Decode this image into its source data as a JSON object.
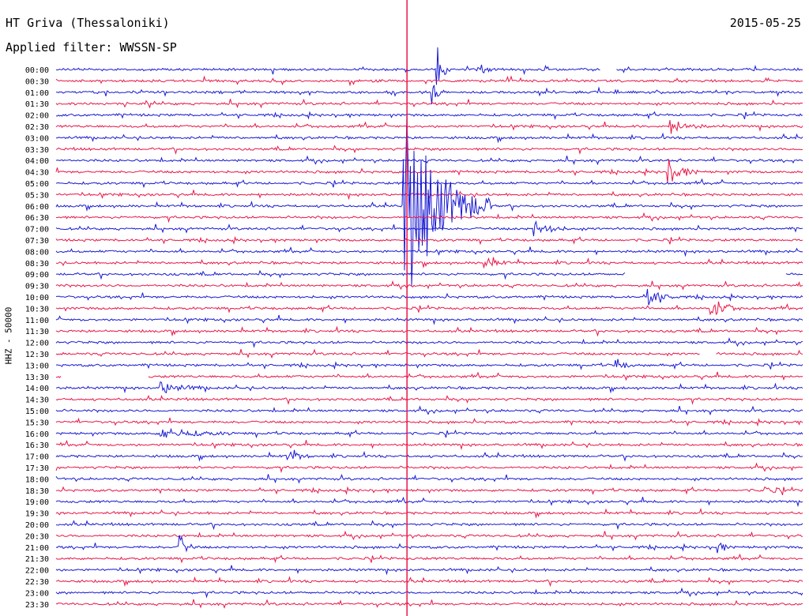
{
  "header": {
    "station": "HT Griva (Thessaloniki)",
    "date": "2015-05-25",
    "filter": "Applied filter: WWSSN-SP"
  },
  "chart_data": {
    "type": "line",
    "title": "HT Griva (Thessaloniki)",
    "subtitle": "Applied filter: WWSSN-SP",
    "date": "2015-05-25",
    "ylabel": "HHZ - 50000",
    "row_labels": [
      "00:00",
      "00:30",
      "01:00",
      "01:30",
      "02:00",
      "02:30",
      "03:00",
      "03:30",
      "04:00",
      "04:30",
      "05:00",
      "05:30",
      "06:00",
      "06:30",
      "07:00",
      "07:30",
      "08:00",
      "08:30",
      "09:00",
      "09:30",
      "10:00",
      "10:30",
      "11:00",
      "11:30",
      "12:00",
      "12:30",
      "13:00",
      "13:30",
      "14:00",
      "14:30",
      "15:00",
      "15:30",
      "16:00",
      "16:30",
      "17:00",
      "17:30",
      "18:00",
      "18:30",
      "19:00",
      "19:30",
      "20:00",
      "20:30",
      "21:00",
      "21:30",
      "22:00",
      "22:30",
      "23:00",
      "23:30"
    ],
    "row_minutes": 30,
    "colors": [
      "#1a1ad4",
      "#e8174a"
    ],
    "grid": false,
    "events": [
      {
        "row_label": "00:00",
        "minute": 15.3,
        "amplitude": 1.9,
        "duration_min": 0.6
      },
      {
        "row_label": "00:00",
        "minute": 17.0,
        "amplitude": 0.9,
        "duration_min": 0.5
      },
      {
        "row_label": "01:00",
        "minute": 15.1,
        "amplitude": 1.2,
        "duration_min": 0.5
      },
      {
        "row_label": "02:30",
        "minute": 24.7,
        "amplitude": 0.6,
        "duration_min": 1.5
      },
      {
        "row_label": "04:30",
        "minute": 24.6,
        "amplitude": 1.1,
        "duration_min": 1.2
      },
      {
        "row_label": "06:00",
        "minute": 14.0,
        "amplitude": 9.0,
        "duration_min": 3.5
      },
      {
        "row_label": "07:00",
        "minute": 19.2,
        "amplitude": 0.7,
        "duration_min": 1.5
      },
      {
        "row_label": "08:30",
        "minute": 17.2,
        "amplitude": 0.6,
        "duration_min": 1.0
      },
      {
        "row_label": "10:00",
        "minute": 23.8,
        "amplitude": 0.9,
        "duration_min": 1.2
      },
      {
        "row_label": "10:30",
        "minute": 26.3,
        "amplitude": 0.8,
        "duration_min": 1.3
      },
      {
        "row_label": "13:00",
        "minute": 22.5,
        "amplitude": 0.6,
        "duration_min": 0.8
      },
      {
        "row_label": "14:00",
        "minute": 4.2,
        "amplitude": 0.5,
        "duration_min": 2.0
      },
      {
        "row_label": "16:00",
        "minute": 4.2,
        "amplitude": 0.5,
        "duration_min": 3.0
      },
      {
        "row_label": "17:00",
        "minute": 9.3,
        "amplitude": 0.6,
        "duration_min": 1.0
      },
      {
        "row_label": "18:30",
        "minute": 28.5,
        "amplitude": 0.4,
        "duration_min": 1.0
      },
      {
        "row_label": "21:00",
        "minute": 5.0,
        "amplitude": 1.0,
        "duration_min": 0.6
      },
      {
        "row_label": "21:00",
        "minute": 26.6,
        "amplitude": 0.6,
        "duration_min": 0.5
      }
    ],
    "gaps": [
      {
        "row_label": "00:00",
        "start_min": 21.9,
        "end_min": 22.5
      },
      {
        "row_label": "09:00",
        "start_min": 22.9,
        "end_min": 29.3
      },
      {
        "row_label": "12:30",
        "start_min": 25.9,
        "end_min": 26.5
      },
      {
        "row_label": "13:30",
        "start_min": 0.2,
        "end_min": 3.7
      }
    ],
    "marker_minute": 14.1
  }
}
